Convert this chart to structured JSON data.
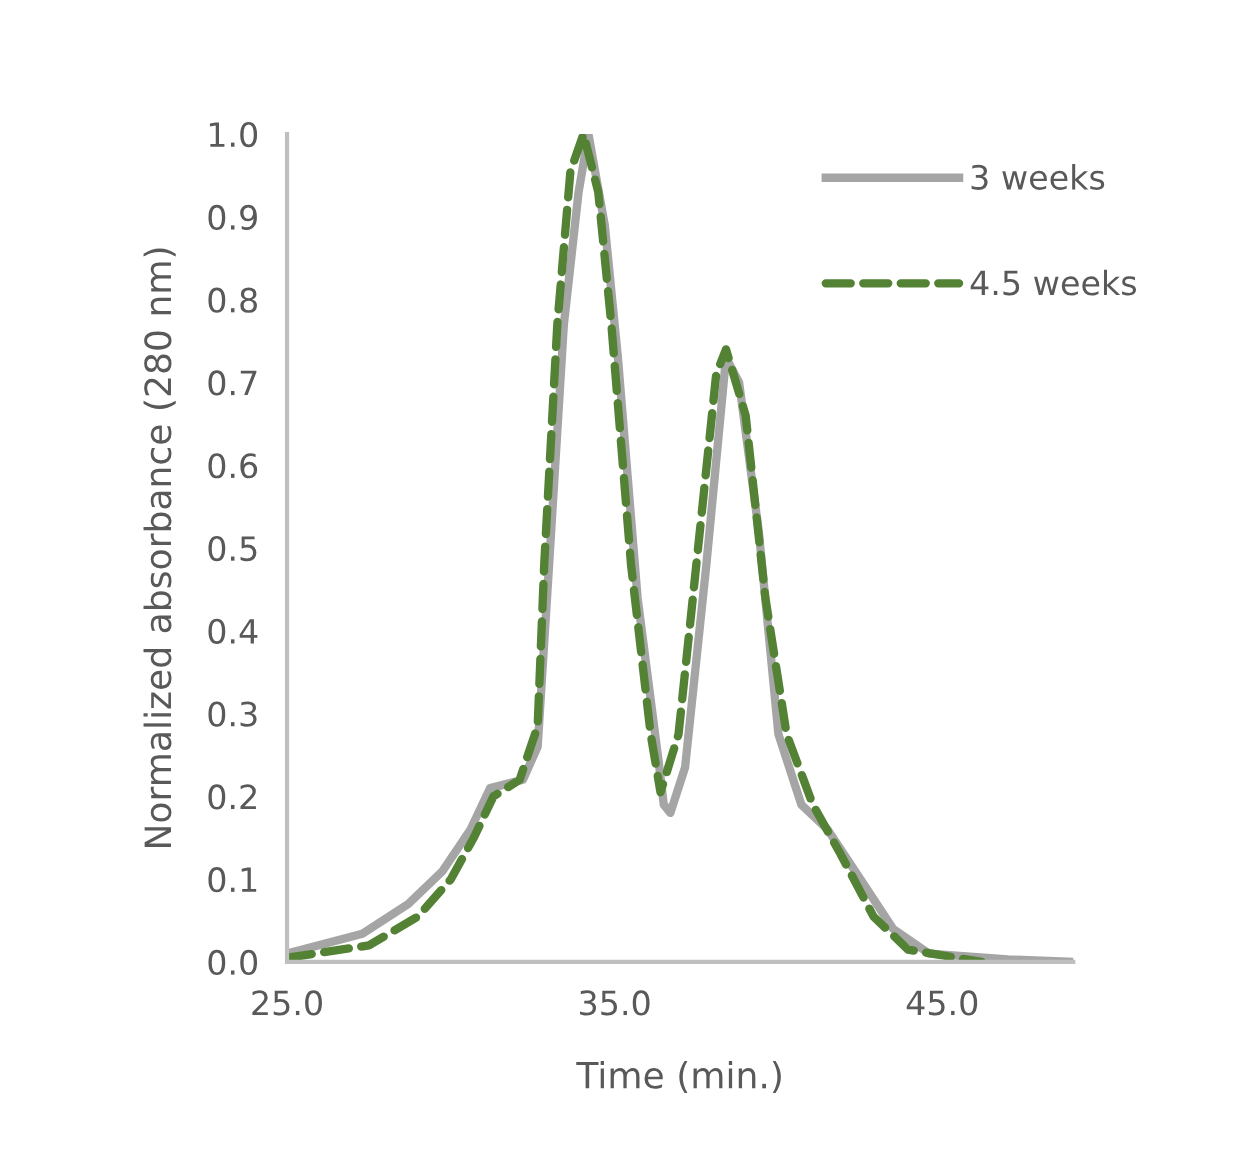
{
  "chart_data": {
    "type": "line",
    "xlabel": "Time (min.)",
    "ylabel": "Normalized absorbance (280 nm)",
    "xlim": [
      25,
      49
    ],
    "ylim": [
      0,
      1.0
    ],
    "xticks": [
      {
        "value": 25,
        "label": "25.0"
      },
      {
        "value": 35,
        "label": "35.0"
      },
      {
        "value": 45,
        "label": "45.0"
      }
    ],
    "yticks": [
      {
        "value": 0,
        "label": "0.0"
      },
      {
        "value": 0.1,
        "label": "0.1"
      },
      {
        "value": 0.2,
        "label": "0.2"
      },
      {
        "value": 0.3,
        "label": "0.3"
      },
      {
        "value": 0.4,
        "label": "0.4"
      },
      {
        "value": 0.5,
        "label": "0.5"
      },
      {
        "value": 0.6,
        "label": "0.6"
      },
      {
        "value": 0.7,
        "label": "0.7"
      },
      {
        "value": 0.8,
        "label": "0.8"
      },
      {
        "value": 0.9,
        "label": "0.9"
      },
      {
        "value": 1.0,
        "label": "1.0"
      }
    ],
    "grid": false,
    "legend": "top right",
    "marker": "none",
    "series": [
      {
        "name": "3 weeks",
        "color": "#a5a5a5",
        "line_style": "solid",
        "x": [
          25.0,
          27.3,
          28.7,
          29.75,
          30.6,
          31.2,
          32.2,
          32.65,
          33.0,
          33.45,
          33.9,
          34.2,
          34.7,
          35.1,
          35.7,
          36.35,
          36.5,
          36.7,
          37.15,
          37.8,
          38.4,
          38.8,
          39.4,
          40.0,
          40.7,
          41.5,
          42.5,
          43.5,
          44.6,
          47.0,
          49.0
        ],
        "values": [
          0.01,
          0.034,
          0.07,
          0.11,
          0.16,
          0.21,
          0.22,
          0.26,
          0.48,
          0.77,
          0.93,
          1.0,
          0.89,
          0.73,
          0.44,
          0.24,
          0.19,
          0.18,
          0.235,
          0.48,
          0.73,
          0.7,
          0.52,
          0.275,
          0.19,
          0.16,
          0.1,
          0.04,
          0.01,
          0.003,
          0.0
        ]
      },
      {
        "name": "4.5 weeks",
        "color": "#548235",
        "line_style": "dashed",
        "x": [
          25.0,
          27.5,
          29.0,
          30.0,
          30.7,
          31.3,
          32.1,
          32.65,
          32.85,
          33.25,
          33.65,
          34.05,
          34.5,
          34.9,
          35.5,
          36.1,
          36.4,
          36.95,
          37.6,
          38.1,
          38.4,
          39.0,
          39.6,
          40.25,
          41.05,
          41.9,
          42.9,
          43.95,
          46.2
        ],
        "values": [
          0.005,
          0.02,
          0.055,
          0.1,
          0.15,
          0.2,
          0.22,
          0.285,
          0.48,
          0.77,
          0.955,
          1.0,
          0.93,
          0.77,
          0.48,
          0.275,
          0.205,
          0.275,
          0.52,
          0.71,
          0.74,
          0.66,
          0.44,
          0.275,
          0.19,
          0.13,
          0.055,
          0.015,
          0.0
        ]
      }
    ]
  }
}
